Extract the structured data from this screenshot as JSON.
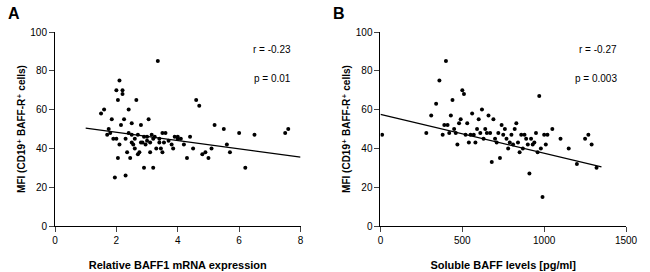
{
  "chart_data": [
    {
      "type": "scatter",
      "title": "A",
      "xlabel": "Relative BAFF1 mRNA expression",
      "ylabel": "MFI (CD19⁺ BAFF-R⁺ cells)",
      "xlim": [
        0,
        8
      ],
      "ylim": [
        0,
        100
      ],
      "xticks": [
        0,
        2,
        4,
        6,
        8
      ],
      "yticks": [
        0,
        20,
        40,
        60,
        80,
        100
      ],
      "annotations": [
        "r = -0.23",
        "p = 0.01"
      ],
      "grid": false,
      "color": "#000000",
      "x": [
        1.5,
        1.6,
        1.7,
        1.75,
        1.8,
        1.85,
        1.9,
        1.95,
        2.0,
        2.0,
        2.05,
        2.05,
        2.1,
        2.1,
        2.15,
        2.2,
        2.2,
        2.25,
        2.3,
        2.3,
        2.35,
        2.4,
        2.4,
        2.45,
        2.5,
        2.5,
        2.5,
        2.55,
        2.6,
        2.6,
        2.65,
        2.7,
        2.7,
        2.75,
        2.8,
        2.8,
        2.85,
        2.9,
        2.9,
        2.95,
        3.0,
        3.0,
        3.05,
        3.1,
        3.1,
        3.15,
        3.2,
        3.2,
        3.25,
        3.3,
        3.35,
        3.4,
        3.4,
        3.45,
        3.5,
        3.5,
        3.55,
        3.6,
        3.7,
        3.8,
        3.85,
        3.9,
        4.0,
        4.0,
        4.1,
        4.2,
        4.3,
        4.4,
        4.5,
        4.6,
        4.7,
        4.8,
        4.9,
        5.0,
        5.1,
        5.2,
        5.5,
        5.6,
        5.7,
        6.0,
        6.2,
        6.5,
        7.5,
        7.6
      ],
      "values": [
        58,
        60,
        47,
        50,
        48,
        55,
        45,
        25,
        70,
        45,
        65,
        35,
        75,
        42,
        52,
        70,
        68,
        55,
        26,
        45,
        38,
        48,
        60,
        35,
        47,
        43,
        53,
        42,
        45,
        40,
        65,
        37,
        47,
        38,
        43,
        52,
        43,
        30,
        46,
        42,
        46,
        44,
        55,
        38,
        43,
        47,
        45,
        30,
        46,
        40,
        85,
        45,
        43,
        40,
        48,
        38,
        43,
        48,
        44,
        42,
        40,
        46,
        46,
        45,
        45,
        42,
        35,
        46,
        40,
        65,
        62,
        37,
        38,
        35,
        40,
        52,
        50,
        42,
        38,
        48,
        30,
        47,
        48,
        50
      ],
      "trend": {
        "type": "line",
        "color": "#000000",
        "x": [
          1.0,
          8.0
        ],
        "values": [
          50.5,
          35.5
        ]
      }
    },
    {
      "type": "scatter",
      "title": "B",
      "xlabel": "Soluble BAFF levels [pg/ml]",
      "ylabel": "MFI (CD19⁺ BAFF-R⁺ cells)",
      "xlim": [
        0,
        1500
      ],
      "ylim": [
        0,
        100
      ],
      "xticks": [
        0,
        500,
        1000,
        1500
      ],
      "yticks": [
        0,
        20,
        40,
        60,
        80,
        100
      ],
      "annotations": [
        "r = -0.27",
        "p = 0.003"
      ],
      "grid": false,
      "color": "#000000",
      "x": [
        10,
        280,
        310,
        340,
        360,
        380,
        390,
        400,
        410,
        420,
        430,
        440,
        450,
        460,
        470,
        480,
        490,
        500,
        510,
        520,
        530,
        540,
        550,
        560,
        570,
        580,
        590,
        600,
        610,
        620,
        630,
        640,
        650,
        660,
        670,
        680,
        690,
        700,
        710,
        720,
        730,
        740,
        750,
        760,
        770,
        780,
        790,
        800,
        810,
        820,
        830,
        840,
        850,
        860,
        870,
        880,
        890,
        900,
        910,
        920,
        930,
        940,
        950,
        960,
        970,
        980,
        990,
        1000,
        1010,
        1020,
        1050,
        1100,
        1150,
        1200,
        1250,
        1270,
        1290,
        1320
      ],
      "values": [
        47,
        48,
        57,
        63,
        75,
        47,
        52,
        85,
        52,
        48,
        57,
        65,
        50,
        48,
        42,
        53,
        55,
        70,
        68,
        47,
        53,
        43,
        47,
        58,
        47,
        43,
        50,
        55,
        48,
        60,
        45,
        50,
        48,
        57,
        48,
        33,
        55,
        45,
        43,
        48,
        35,
        52,
        47,
        50,
        45,
        40,
        43,
        47,
        42,
        50,
        53,
        43,
        38,
        47,
        40,
        47,
        45,
        42,
        27,
        45,
        42,
        43,
        48,
        38,
        67,
        40,
        15,
        47,
        42,
        47,
        50,
        45,
        40,
        32,
        45,
        47,
        42,
        30
      ],
      "trend": {
        "type": "line",
        "color": "#000000",
        "x": [
          0,
          1350
        ],
        "values": [
          57.5,
          30.5
        ]
      }
    }
  ]
}
